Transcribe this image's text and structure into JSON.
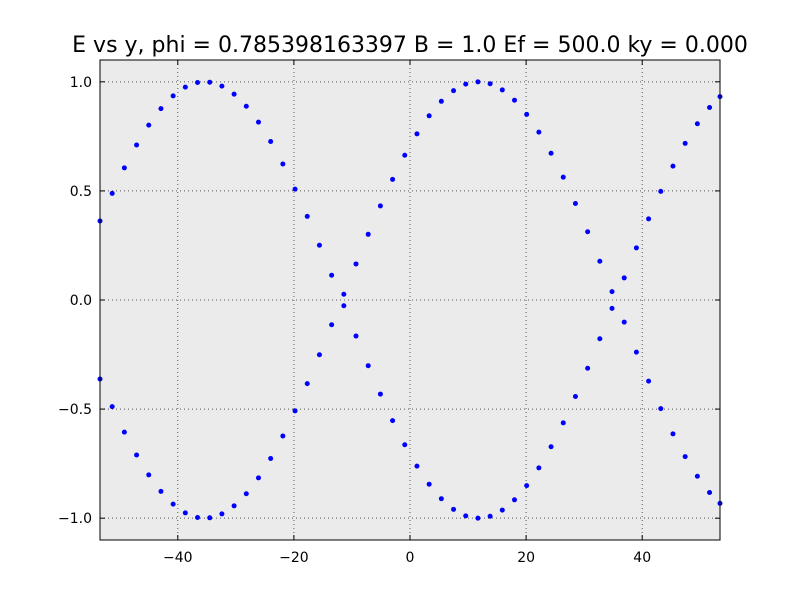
{
  "chart_data": {
    "type": "scatter",
    "title": "E vs y, phi = 0.785398163397 B = 1.0 Ef = 500.0 ky = 0.000",
    "xlabel": "",
    "ylabel": "",
    "xlim": [
      -53.4,
      53.4
    ],
    "ylim": [
      -1.1,
      1.1
    ],
    "xticks": [
      -40,
      -20,
      0,
      20,
      40
    ],
    "xtick_labels": [
      "−40",
      "−20",
      "0",
      "20",
      "40"
    ],
    "yticks": [
      -1.0,
      -0.5,
      0.0,
      0.5,
      1.0
    ],
    "ytick_labels": [
      "−1.0",
      "−0.5",
      "0.0",
      "0.5",
      "1.0"
    ],
    "grid": true,
    "colors": {
      "marker": "#0000ff",
      "plot_bg": "#ebebeb",
      "axes_edge": "#000000"
    },
    "series": [
      {
        "name": "E",
        "y_description": "E = ± sin(0.0666 * y + 0.785), both branches",
        "x": [
          -53.4,
          -51.3,
          -49.2,
          -47.1,
          -45.0,
          -42.9,
          -40.8,
          -38.7,
          -36.6,
          -34.5,
          -32.4,
          -30.3,
          -28.2,
          -26.1,
          -24.0,
          -21.9,
          -19.8,
          -17.7,
          -15.6,
          -13.5,
          -11.4,
          -9.3,
          -7.2,
          -5.1,
          -3.0,
          -0.9,
          1.2,
          3.3,
          5.4,
          7.5,
          9.6,
          11.7,
          13.8,
          15.9,
          18.0,
          20.1,
          22.2,
          24.3,
          26.4,
          28.5,
          30.6,
          32.7,
          34.8,
          36.9,
          39.0,
          41.1,
          43.2,
          45.3,
          47.4,
          49.5,
          51.6,
          53.4
        ],
        "branches": [
          "positive",
          "negative"
        ]
      }
    ]
  }
}
